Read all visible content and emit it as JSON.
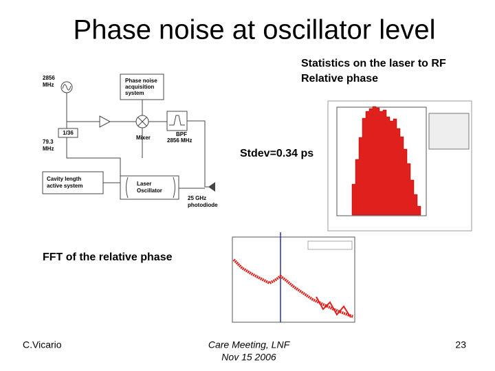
{
  "title": "Phase noise at oscillator level",
  "diagram": {
    "source": [
      "2856",
      "MHz"
    ],
    "acquisition": [
      "Phase noise",
      "acquisition",
      "system"
    ],
    "mixer": "Mixer",
    "bpf": [
      "BPF",
      "2856 MHz"
    ],
    "divider": "1/36",
    "rf_out": [
      "79.3",
      "MHz"
    ],
    "cavity": [
      "Cavity length",
      "active system"
    ],
    "laser": [
      "Laser",
      "Oscillator"
    ],
    "photodiode": [
      "25 GHz",
      "photodiode"
    ]
  },
  "statistics": {
    "heading": [
      "Statistics on the laser to RF",
      "Relative phase"
    ],
    "stdev": "Stdev=0.34 ps"
  },
  "fft": {
    "heading": "FFT of the relative phase"
  },
  "footer": {
    "author": "C.Vicario",
    "event": [
      "Care Meeting, LNF",
      "Nov 15 2006"
    ],
    "page": "23"
  }
}
